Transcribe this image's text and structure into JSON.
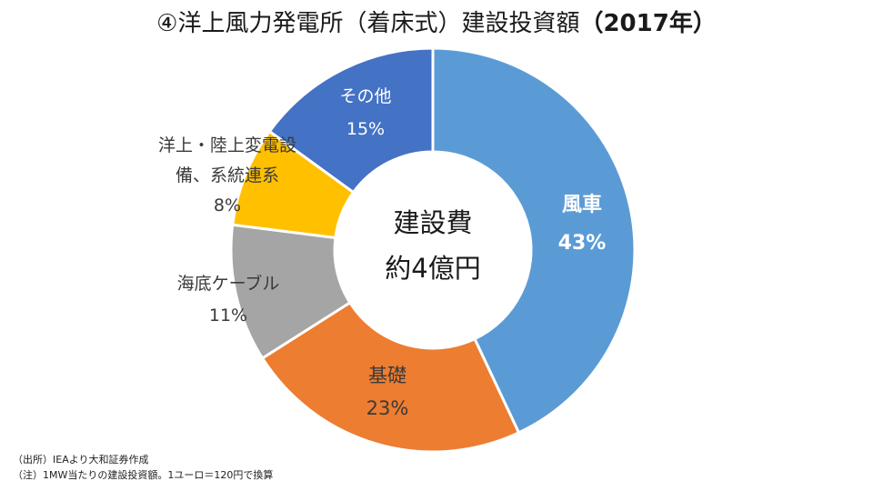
{
  "chart_data": {
    "type": "pie",
    "title": "④洋上風力発電所（着床式）建設投資額",
    "title_year": "（2017年）",
    "center_label": [
      "建設費",
      "約4億円"
    ],
    "slices": [
      {
        "label": [
          "風車"
        ],
        "value": 43,
        "value_label": "43%",
        "color": "#5B9BD5",
        "text_color": "#ffffff",
        "bold": true
      },
      {
        "label": [
          "基礎"
        ],
        "value": 23,
        "value_label": "23%",
        "color": "#ED7D31",
        "text_color": "#3a3a3a",
        "bold": false
      },
      {
        "label": [
          "海底ケーブル"
        ],
        "value": 11,
        "value_label": "11%",
        "color": "#A5A5A5",
        "text_color": "#3a3a3a",
        "bold": false
      },
      {
        "label": [
          "洋上・陸上変電設",
          "備、系統連系"
        ],
        "value": 8,
        "value_label": "8%",
        "color": "#FFC000",
        "text_color": "#3a3a3a",
        "bold": false
      },
      {
        "label": [
          "その他"
        ],
        "value": 15,
        "value_label": "15%",
        "color": "#4472C4",
        "text_color": "#ffffff",
        "bold": false
      }
    ]
  },
  "notes": {
    "source": "（出所）IEAより大和証券作成",
    "note": "（注）1MW当たりの建設投資額。1ユーロ＝120円で換算"
  }
}
